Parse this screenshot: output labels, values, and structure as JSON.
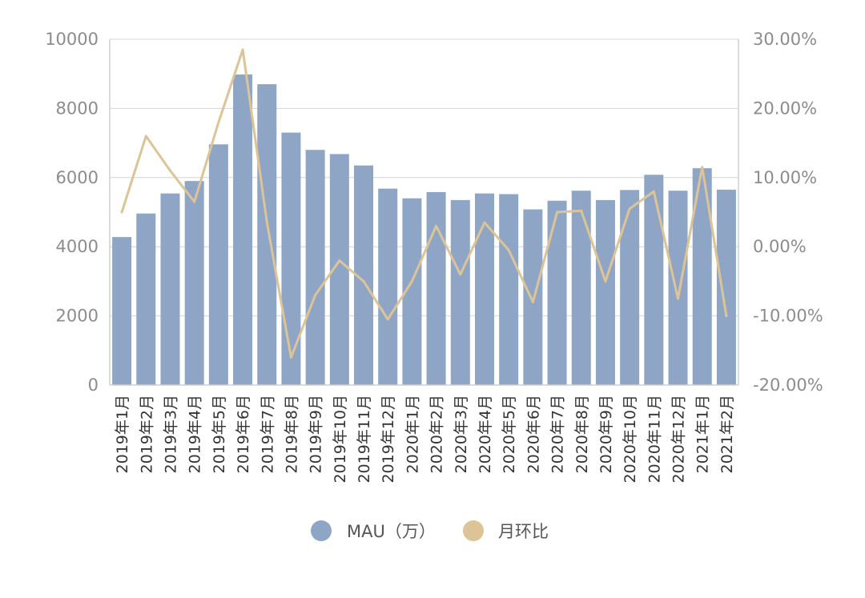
{
  "chart_data": {
    "type": "bar",
    "categories": [
      "2019年1月",
      "2019年2月",
      "2019年3月",
      "2019年4月",
      "2019年5月",
      "2019年6月",
      "2019年7月",
      "2019年8月",
      "2019年9月",
      "2019年10月",
      "2019年11月",
      "2019年12月",
      "2020年1月",
      "2020年2月",
      "2020年3月",
      "2020年4月",
      "2020年5月",
      "2020年6月",
      "2020年7月",
      "2020年8月",
      "2020年9月",
      "2020年10月",
      "2020年11月",
      "2020年12月",
      "2021年1月",
      "2021年2月"
    ],
    "series": [
      {
        "name": "MAU（万）",
        "type": "bar",
        "axis": "left",
        "color": "#8fa5c5",
        "values": [
          4280,
          4960,
          5540,
          5900,
          6960,
          8980,
          8700,
          7300,
          6800,
          6680,
          6350,
          5680,
          5400,
          5580,
          5350,
          5540,
          5520,
          5080,
          5330,
          5620,
          5350,
          5640,
          6080,
          5620,
          6270,
          5650
        ]
      },
      {
        "name": "月环比",
        "type": "line",
        "axis": "right",
        "color": "#dcc497",
        "unit": "%",
        "values": [
          5.0,
          16.0,
          11.0,
          6.5,
          18.0,
          28.5,
          3.5,
          -16.0,
          -7.0,
          -2.0,
          -5.0,
          -10.5,
          -5.0,
          3.0,
          -4.0,
          3.5,
          -0.5,
          -8.0,
          5.0,
          5.2,
          -5.0,
          5.5,
          8.0,
          -7.5,
          11.5,
          -10.0
        ]
      }
    ],
    "y_left": {
      "ylim": [
        0,
        10000
      ],
      "ticks": [
        "0",
        "2000",
        "4000",
        "6000",
        "8000",
        "10000"
      ]
    },
    "y_right": {
      "ylim": [
        -20,
        30
      ],
      "ticks": [
        "-20.00%",
        "-10.00%",
        "0.00%",
        "10.00%",
        "20.00%",
        "30.00%"
      ]
    },
    "grid": true,
    "legend_position": "bottom"
  },
  "legend": [
    {
      "label": "MAU（万）",
      "color": "#8fa5c5"
    },
    {
      "label": "月环比",
      "color": "#dcc497"
    }
  ]
}
